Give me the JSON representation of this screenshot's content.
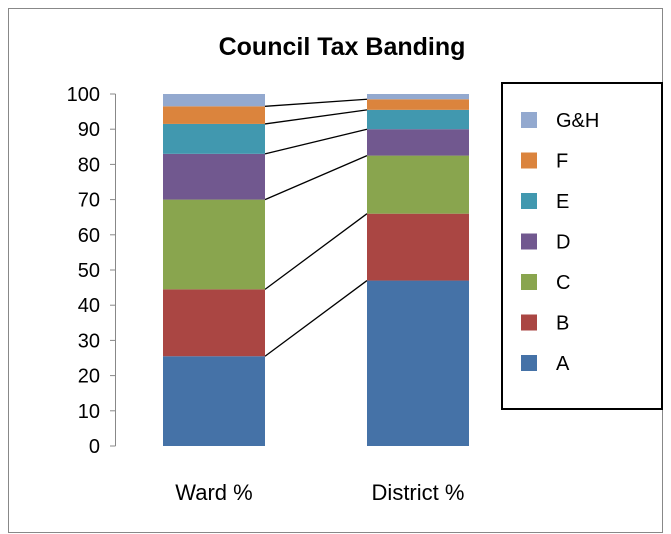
{
  "chart_data": {
    "type": "bar",
    "stacked": true,
    "title": "Council Tax Banding",
    "categories": [
      "Ward %",
      "District %"
    ],
    "ylim": [
      0,
      100
    ],
    "yticks": [
      0,
      10,
      20,
      30,
      40,
      50,
      60,
      70,
      80,
      90,
      100
    ],
    "grid": false,
    "legend_position": "right",
    "series": [
      {
        "name": "A",
        "values": [
          25.5,
          47.0
        ],
        "color": "#4572A7"
      },
      {
        "name": "B",
        "values": [
          19.0,
          19.0
        ],
        "color": "#AA4643"
      },
      {
        "name": "C",
        "values": [
          25.5,
          16.5
        ],
        "color": "#89A54E"
      },
      {
        "name": "D",
        "values": [
          13.0,
          7.5
        ],
        "color": "#71588F"
      },
      {
        "name": "E",
        "values": [
          8.5,
          5.5
        ],
        "color": "#4198AF"
      },
      {
        "name": "F",
        "values": [
          5.0,
          3.0
        ],
        "color": "#DB843D"
      },
      {
        "name": "G&H",
        "values": [
          3.5,
          1.5
        ],
        "color": "#93A9CF"
      }
    ]
  }
}
